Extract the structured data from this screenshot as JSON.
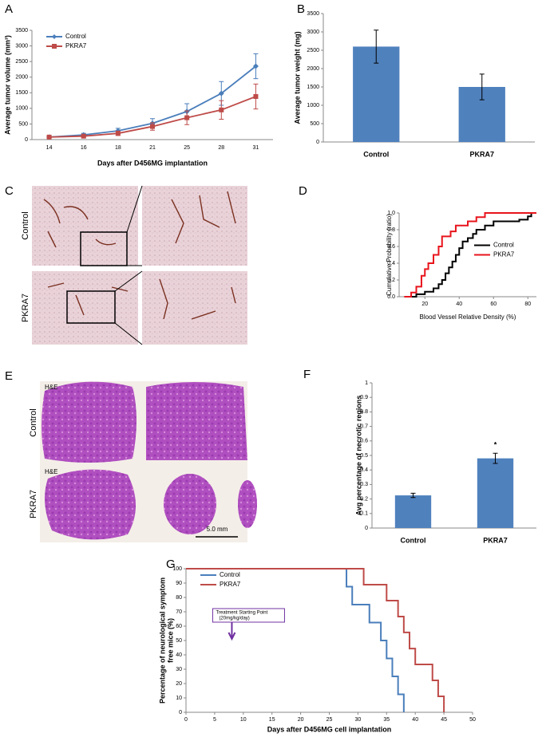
{
  "chart_data": [
    {
      "type": "line",
      "panel_label": "A",
      "xlabel": "Days after D456MG implantation",
      "ylabel": "Average tumor volume (mm³)",
      "categories": [
        "14",
        "16",
        "18",
        "21",
        "25",
        "28",
        "31"
      ],
      "series": [
        {
          "name": "Control",
          "color": "#4a7ebb",
          "marker": "diamond",
          "values": [
            80,
            150,
            280,
            520,
            900,
            1480,
            2350
          ],
          "errors": [
            20,
            50,
            80,
            150,
            250,
            380,
            400
          ]
        },
        {
          "name": "PKRA7",
          "color": "#be4b48",
          "marker": "square",
          "values": [
            80,
            110,
            200,
            420,
            700,
            950,
            1380
          ],
          "errors": [
            20,
            40,
            70,
            120,
            220,
            300,
            400
          ]
        }
      ],
      "ylim": [
        0,
        3500
      ],
      "yticks": [
        0,
        500,
        1000,
        1500,
        2000,
        2500,
        3000,
        3500
      ],
      "legend": "upper left"
    },
    {
      "type": "bar",
      "panel_label": "B",
      "ylabel": "Average tumor weight (mg)",
      "categories": [
        "Control",
        "PKRA7"
      ],
      "values": [
        2600,
        1500
      ],
      "errors": [
        450,
        350
      ],
      "color": "#4f81bd",
      "ylim": [
        0,
        3500
      ],
      "yticks": [
        0,
        500,
        1000,
        1500,
        2000,
        2500,
        3000,
        3500
      ]
    },
    {
      "type": "line",
      "step": true,
      "panel_label": "D",
      "xlabel": "Blood Vessel Relative Density  (%)",
      "ylabel": "Cumulative Probability (ratio)",
      "series": [
        {
          "name": "Control",
          "color": "#000000",
          "x": [
            8,
            15,
            20,
            25,
            28,
            30,
            32,
            34,
            36,
            38,
            40,
            42,
            45,
            48,
            50,
            55,
            60,
            75,
            80,
            82,
            85
          ],
          "values": [
            0,
            0.03,
            0.06,
            0.1,
            0.15,
            0.2,
            0.28,
            0.35,
            0.42,
            0.5,
            0.58,
            0.66,
            0.7,
            0.75,
            0.8,
            0.85,
            0.9,
            0.92,
            0.96,
            1.0,
            1.0
          ]
        },
        {
          "name": "PKRA7",
          "color": "#e8141c",
          "x": [
            8,
            12,
            15,
            18,
            20,
            22,
            25,
            28,
            30,
            35,
            38,
            45,
            50,
            55,
            85
          ],
          "values": [
            0,
            0.05,
            0.12,
            0.25,
            0.33,
            0.4,
            0.5,
            0.6,
            0.72,
            0.78,
            0.85,
            0.9,
            0.95,
            1.0,
            1.0
          ]
        }
      ],
      "xlim": [
        5,
        85
      ],
      "xticks": [
        20,
        40,
        60,
        80
      ],
      "ylim": [
        0,
        1
      ],
      "yticks": [
        {
          "value": 0,
          "label": "0.0"
        },
        0.2,
        0.4,
        0.6,
        0.8,
        {
          "value": 1,
          "label": "1.0"
        }
      ],
      "legend": "center right"
    },
    {
      "type": "bar",
      "panel_label": "F",
      "ylabel": "Avg percentage of necrotic regions",
      "categories": [
        "Control",
        "PKRA7"
      ],
      "values": [
        0.225,
        0.48
      ],
      "errors": [
        0.015,
        0.035
      ],
      "color": "#4f81bd",
      "annotation": "*",
      "ylim": [
        0,
        1
      ],
      "yticks": [
        0,
        0.1,
        0.2,
        0.3,
        0.4,
        0.5,
        0.6,
        0.7,
        0.8,
        0.9,
        1
      ]
    },
    {
      "type": "line",
      "step": true,
      "panel_label": "G",
      "xlabel": "Days after D456MG cell implantation",
      "ylabel": [
        "Percentage of neurological symptom",
        "free mice (%)"
      ],
      "series": [
        {
          "name": "Control",
          "color": "#4a7ebb",
          "x": [
            0,
            28,
            29,
            32,
            34,
            35,
            36,
            37,
            38
          ],
          "values": [
            100,
            87.5,
            75,
            62.5,
            50,
            37.5,
            25,
            12.5,
            0
          ]
        },
        {
          "name": "PKRA7",
          "color": "#be4b48",
          "x": [
            0,
            31,
            35,
            37,
            38,
            39,
            40,
            43,
            44,
            45
          ],
          "values": [
            100,
            88.9,
            77.8,
            66.7,
            55.6,
            44.4,
            33.3,
            22.2,
            11.1,
            0
          ]
        }
      ],
      "annotation": {
        "text": "Treatment Starting Point",
        "subtext": "(20mg/kg/day)",
        "x": 8
      },
      "xlim": [
        0,
        50
      ],
      "xticks": [
        0,
        5,
        10,
        15,
        20,
        25,
        30,
        35,
        40,
        45,
        50
      ],
      "ylim": [
        0,
        100
      ],
      "yticks": [
        0,
        10,
        20,
        30,
        40,
        50,
        60,
        70,
        80,
        90,
        100
      ],
      "legend": "upper left"
    }
  ],
  "image_panels": {
    "C": {
      "label": "C",
      "row_labels": [
        "Control",
        "PKRA7"
      ]
    },
    "E": {
      "label": "E",
      "row_labels": [
        "Control",
        "PKRA7"
      ],
      "stain_labels": [
        "H&E",
        "H&E"
      ],
      "scale_bar": "5.0 mm"
    }
  }
}
